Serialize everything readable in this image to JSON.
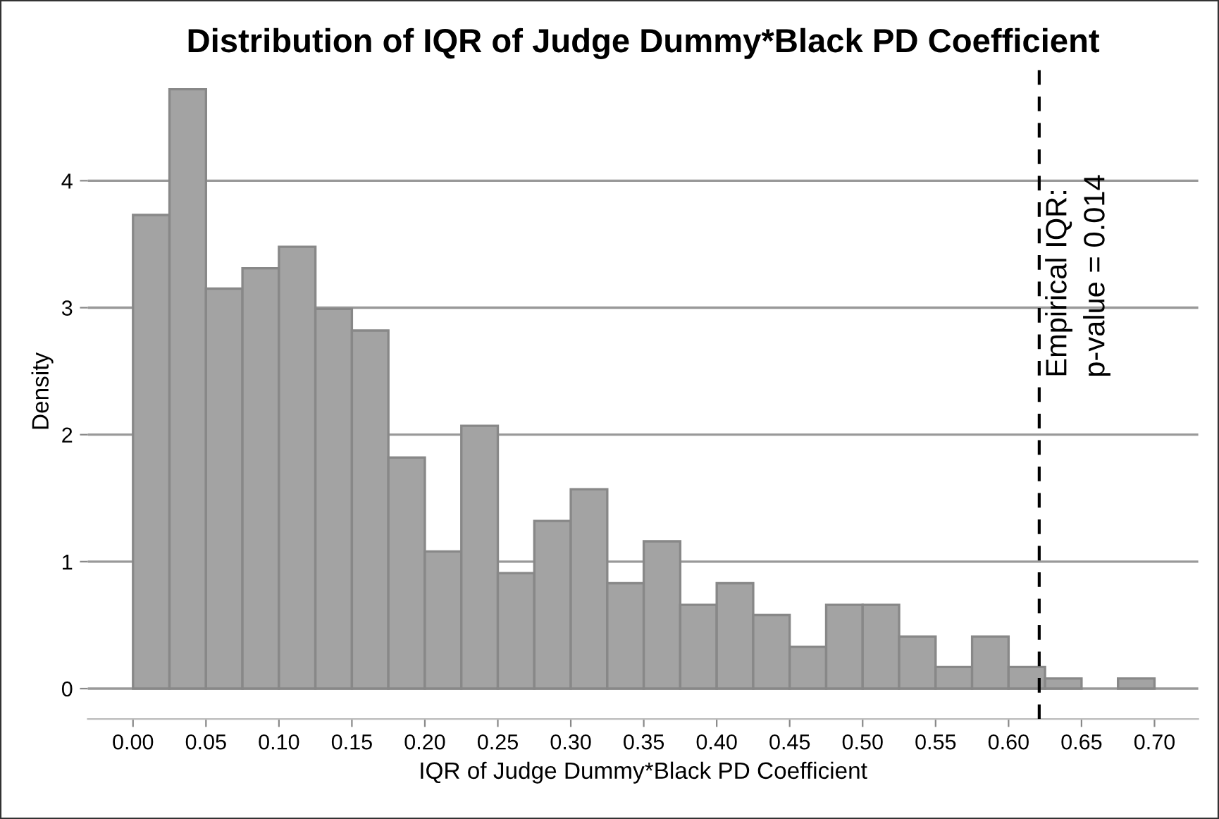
{
  "chart_data": {
    "type": "histogram",
    "title": "Distribution of IQR of Judge Dummy*Black PD Coefficient",
    "xlabel": "IQR of Judge Dummy*Black PD Coefficient",
    "ylabel": "Density",
    "bins": [
      0,
      0.025,
      0.05,
      0.075,
      0.1,
      0.125,
      0.15,
      0.175,
      0.2,
      0.225,
      0.25,
      0.275,
      0.3,
      0.325,
      0.35,
      0.375,
      0.4,
      0.425,
      0.45,
      0.475,
      0.5,
      0.525,
      0.55,
      0.575,
      0.6,
      0.625,
      0.65,
      0.675,
      0.7
    ],
    "values": [
      3.73,
      4.72,
      3.15,
      3.31,
      3.48,
      2.99,
      2.82,
      1.82,
      1.08,
      2.07,
      0.91,
      1.32,
      1.57,
      0.83,
      1.16,
      0.66,
      0.83,
      0.58,
      0.33,
      0.66,
      0.66,
      0.41,
      0.17,
      0.41,
      0.17,
      0.08,
      0,
      0.08
    ],
    "color": "#a3a3a3",
    "xlim": [
      -0.031,
      0.73
    ],
    "ylim": [
      -0.24,
      4.92
    ],
    "xticks": [
      {
        "value": 0,
        "label": "0.00"
      },
      {
        "value": 0.05,
        "label": "0.05"
      },
      {
        "value": 0.1,
        "label": "0.10"
      },
      {
        "value": 0.15,
        "label": "0.15"
      },
      {
        "value": 0.2,
        "label": "0.20"
      },
      {
        "value": 0.25,
        "label": "0.25"
      },
      {
        "value": 0.3,
        "label": "0.30"
      },
      {
        "value": 0.35,
        "label": "0.35"
      },
      {
        "value": 0.4,
        "label": "0.40"
      },
      {
        "value": 0.45,
        "label": "0.45"
      },
      {
        "value": 0.5,
        "label": "0.50"
      },
      {
        "value": 0.55,
        "label": "0.55"
      },
      {
        "value": 0.6,
        "label": "0.60"
      },
      {
        "value": 0.65,
        "label": "0.65"
      },
      {
        "value": 0.7,
        "label": "0.70"
      }
    ],
    "yticks": [
      0,
      1,
      2,
      3,
      4
    ],
    "grid": "y",
    "ref_lines": [
      {
        "axis": "x",
        "value": 0.621,
        "color": "#000000",
        "line_style": "dashed"
      }
    ],
    "annotations": [
      {
        "text": "Empirical IQR:\np-value = 0.014",
        "x": 0.621,
        "y": 4.05
      }
    ]
  }
}
